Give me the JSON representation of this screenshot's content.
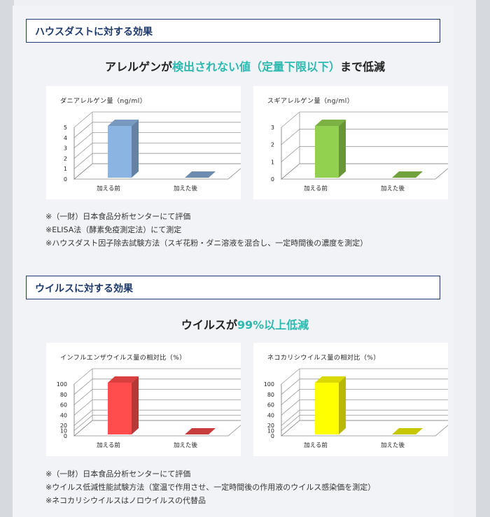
{
  "section1": {
    "heading": "ハウスダストに対する効果",
    "lead_before": "アレルゲンが",
    "lead_highlight": "検出されない値（定量下限以下）",
    "lead_after": "まで低減",
    "notes": [
      "※（一財）日本食品分析センターにて評価",
      "※ELISA法（酵素免疫測定法）にて測定",
      "※ハウスダスト因子除去試験方法（スギ花粉・ダニ溶液を混合し、一定時間後の濃度を測定）"
    ]
  },
  "section2": {
    "heading": "ウイルスに対する効果",
    "lead_before": "ウイルスが",
    "lead_highlight": "99%以上低減",
    "lead_after": "",
    "notes": [
      "※（一財）日本食品分析センターにて評価",
      "※ウイルス低減性能試験方法（室温で作用させ、一定時間後の作用液のウイルス感染価を測定）",
      "※ネコカリシウイルスはノロウイルスの代替品"
    ]
  },
  "colors": {
    "heading_border": "#1f3b6e",
    "highlight": "#2bb9b0"
  },
  "chart_data": [
    {
      "type": "bar",
      "title": "ダニアレルゲン量（ng/ml）",
      "categories": [
        "加える前",
        "加えた後"
      ],
      "values": [
        5,
        0
      ],
      "ylim": [
        0,
        5
      ],
      "yticks": [
        0,
        1,
        2,
        3,
        4,
        5
      ],
      "color": "#8cb4e2",
      "grid": true
    },
    {
      "type": "bar",
      "title": "スギアレルゲン量（ng/ml）",
      "categories": [
        "加える前",
        "加えた後"
      ],
      "values": [
        3,
        0
      ],
      "ylim": [
        0,
        3
      ],
      "yticks": [
        0,
        1,
        2,
        3
      ],
      "color": "#92d050",
      "grid": true
    },
    {
      "type": "bar",
      "title": "インフルエンザウイルス量の相対比（%）",
      "categories": [
        "加える前",
        "加えた後"
      ],
      "values": [
        100,
        0
      ],
      "ylim": [
        0,
        100
      ],
      "yticks": [
        0,
        10,
        20,
        40,
        60,
        80,
        100
      ],
      "color": "#ff4d4d",
      "grid": true
    },
    {
      "type": "bar",
      "title": "ネコカリシウイルス量の相対比（%）",
      "categories": [
        "加える前",
        "加えた後"
      ],
      "values": [
        100,
        0
      ],
      "ylim": [
        0,
        100
      ],
      "yticks": [
        0,
        10,
        20,
        40,
        60,
        80,
        100
      ],
      "color": "#ffff00",
      "grid": true
    }
  ]
}
